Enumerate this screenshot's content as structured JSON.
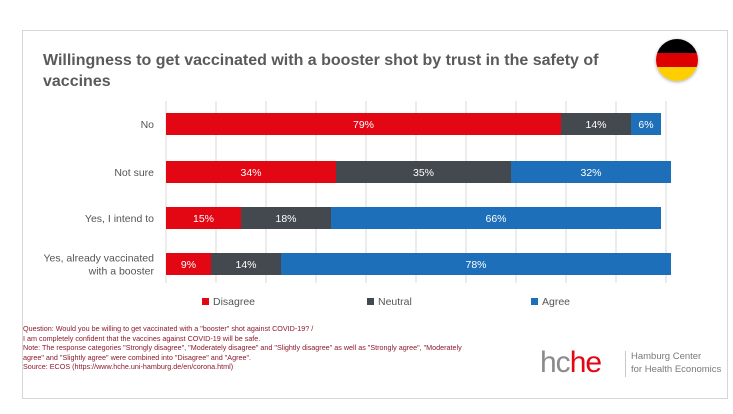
{
  "colors": {
    "disagree": "#e30613",
    "neutral": "#44494f",
    "agree": "#1c6fb8",
    "flag_black": "#000000",
    "flag_red": "#dd0000",
    "flag_gold": "#ffce00"
  },
  "flag_icon": "germany-flag-icon",
  "footnote": {
    "question": "Question: Would you be willing to get vaccinated with a \"booster\" shot against COVID-19? /",
    "statement": "I am completely confident that the vaccines against COVID-19 will be safe.",
    "note_1": "Note: The response categories \"Strongly disagree\", \"Moderately disagree\" and \"Slightly disagree\" as well as \"Strongly agree\", \"Moderately",
    "note_2": "agree\" and \"Slightly agree\" were combined into \"Disagree\" and \"Agree\".",
    "source": "Source: ECOS (https://www.hche.uni-hamburg.de/en/corona.html)"
  },
  "logo": {
    "mark_part1": "hc",
    "mark_part2": "he",
    "name_line1": "Hamburg Center",
    "name_line2": "for Health Economics"
  },
  "chart_data": {
    "type": "bar",
    "orientation": "horizontal",
    "stacked": true,
    "title": "Willingness to get vaccinated with a booster shot by trust in the safety of vaccines",
    "categories": [
      "No",
      "Not sure",
      "Yes, I intend to",
      "Yes, already vaccinated with a booster"
    ],
    "series": [
      {
        "name": "Disagree",
        "values": [
          79,
          34,
          15,
          9
        ],
        "color": "#e30613"
      },
      {
        "name": "Neutral",
        "values": [
          14,
          35,
          18,
          14
        ],
        "color": "#44494f"
      },
      {
        "name": "Agree",
        "values": [
          6,
          32,
          66,
          78
        ],
        "color": "#1c6fb8"
      }
    ],
    "value_suffix": "%",
    "xlim": [
      0,
      100
    ],
    "grid": true,
    "legend": "bottom"
  }
}
